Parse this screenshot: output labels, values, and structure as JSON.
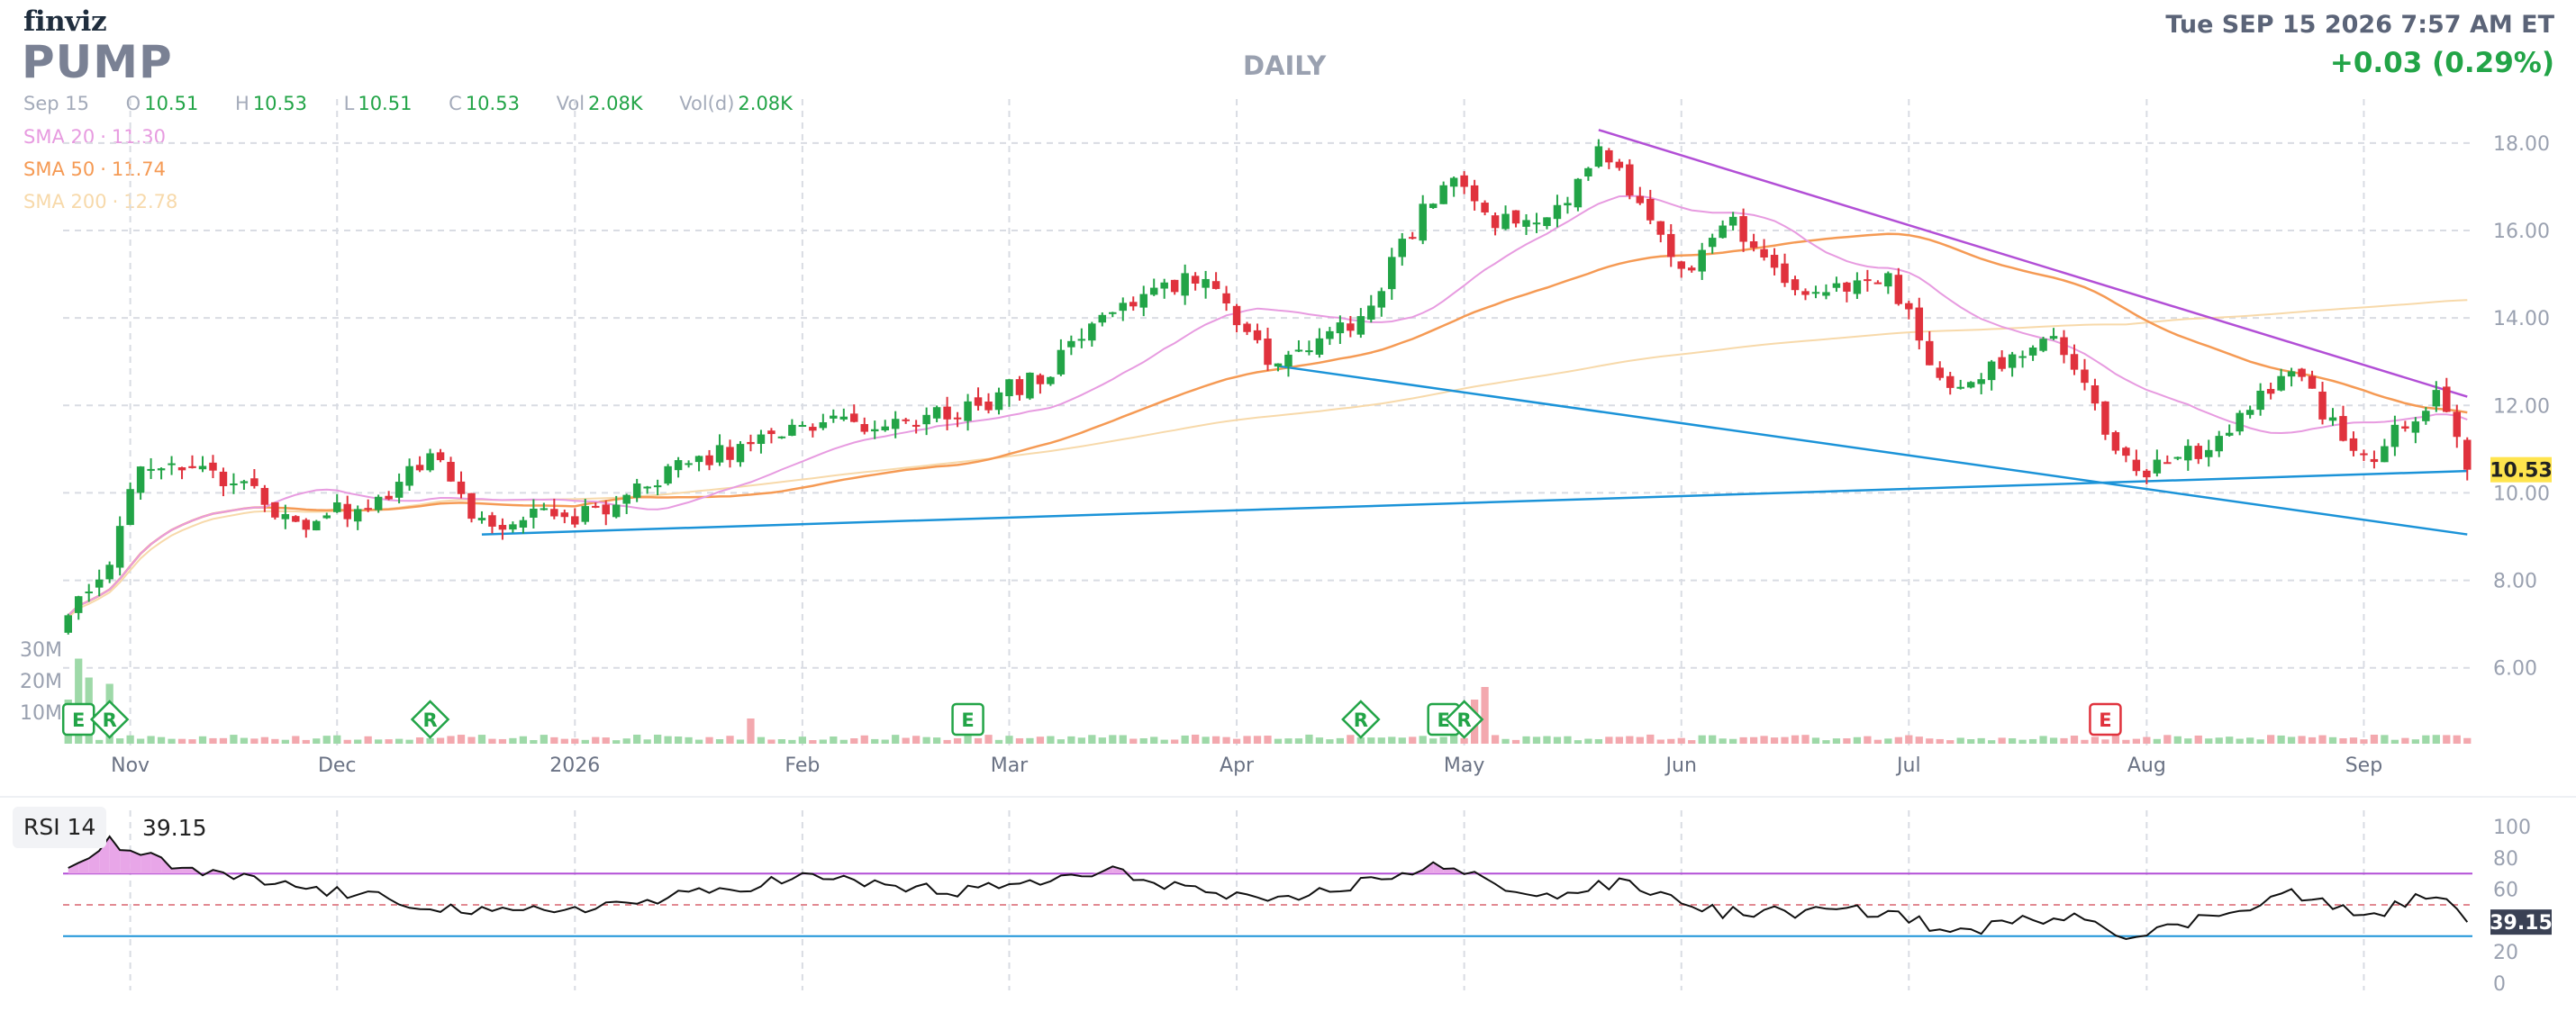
{
  "header": {
    "logo": "finviz",
    "ticker": "PUMP",
    "period": "DAILY",
    "datetime": "Tue SEP 15 2026 7:57 AM ET",
    "change": "+0.03 (0.29%)",
    "change_color": "#22a447"
  },
  "ohlc": {
    "date": "Sep 15",
    "open_label": "O",
    "open": "10.51",
    "high_label": "H",
    "high": "10.53",
    "low_label": "L",
    "low": "10.51",
    "close_label": "C",
    "close": "10.53",
    "vol_label": "Vol",
    "vol": "2.08K",
    "vold_label": "Vol(d)",
    "vold": "2.08K"
  },
  "sma": [
    {
      "label": "SMA 20",
      "value": "11.30",
      "color": "#e79be0"
    },
    {
      "label": "SMA 50",
      "value": "11.74",
      "color": "#f59a54"
    },
    {
      "label": "SMA 200",
      "value": "12.78",
      "color": "#f7d9aa"
    }
  ],
  "colors": {
    "up": "#22a447",
    "down": "#e0323d",
    "vol_up": "#9ed9a8",
    "vol_down": "#f3a8ae",
    "trendline_blue": "#1b93d8",
    "trendline_purple": "#b24fd6",
    "price_tag_bg": "#ffe44d",
    "rsi_line": "#111111",
    "rsi_overbought_fill": "#e8a6e8"
  },
  "chart_data": [
    {
      "type": "candlestick",
      "title": "PUMP DAILY",
      "x_tick_labels": [
        "Nov",
        "Dec",
        "2026",
        "Feb",
        "Mar",
        "Apr",
        "May",
        "Jun",
        "Jul",
        "Aug",
        "Sep"
      ],
      "y_tick_labels": [
        "18.00",
        "16.00",
        "14.00",
        "12.00",
        "10.00",
        "8.00",
        "6.00"
      ],
      "ylim": [
        4.8,
        18.8
      ],
      "y_scale": "linear",
      "grid": true,
      "last_price": "10.53",
      "volume_axis_labels": [
        "30M",
        "20M",
        "10M"
      ],
      "volume_ylim": [
        0,
        35000000
      ],
      "anchors": [
        {
          "date": "2025-10-24",
          "close": 7.2
        },
        {
          "date": "2025-10-30",
          "close": 8.4
        },
        {
          "date": "2025-11-04",
          "close": 10.6
        },
        {
          "date": "2025-11-14",
          "close": 10.4
        },
        {
          "date": "2025-11-25",
          "close": 9.3
        },
        {
          "date": "2025-12-05",
          "close": 9.8
        },
        {
          "date": "2025-12-12",
          "close": 10.9
        },
        {
          "date": "2025-12-19",
          "close": 9.3
        },
        {
          "date": "2026-01-05",
          "close": 9.5
        },
        {
          "date": "2026-01-15",
          "close": 10.5
        },
        {
          "date": "2026-01-26",
          "close": 11.2
        },
        {
          "date": "2026-02-09",
          "close": 11.6
        },
        {
          "date": "2026-02-23",
          "close": 11.8
        },
        {
          "date": "2026-03-06",
          "close": 12.8
        },
        {
          "date": "2026-03-16",
          "close": 14.3
        },
        {
          "date": "2026-03-27",
          "close": 15.0
        },
        {
          "date": "2026-04-06",
          "close": 13.0
        },
        {
          "date": "2026-04-17",
          "close": 14.0
        },
        {
          "date": "2026-04-29",
          "close": 17.2
        },
        {
          "date": "2026-05-06",
          "close": 16.1
        },
        {
          "date": "2026-05-15",
          "close": 16.5
        },
        {
          "date": "2026-05-20",
          "close": 18.1
        },
        {
          "date": "2026-06-01",
          "close": 15.0
        },
        {
          "date": "2026-06-08",
          "close": 16.2
        },
        {
          "date": "2026-06-15",
          "close": 14.6
        },
        {
          "date": "2026-06-29",
          "close": 14.8
        },
        {
          "date": "2026-07-07",
          "close": 12.3
        },
        {
          "date": "2026-07-21",
          "close": 13.6
        },
        {
          "date": "2026-07-28",
          "close": 11.5
        },
        {
          "date": "2026-07-31",
          "close": 10.3
        },
        {
          "date": "2026-08-10",
          "close": 11.0
        },
        {
          "date": "2026-08-21",
          "close": 12.8
        },
        {
          "date": "2026-09-01",
          "close": 10.7
        },
        {
          "date": "2026-09-10",
          "close": 12.2
        },
        {
          "date": "2026-09-15",
          "close": 10.53
        }
      ],
      "volume_spikes": [
        {
          "date": "2025-10-24",
          "volume": 14000000
        },
        {
          "date": "2025-10-27",
          "volume": 27000000
        },
        {
          "date": "2025-10-28",
          "volume": 21000000
        },
        {
          "date": "2025-10-30",
          "volume": 19000000
        },
        {
          "date": "2026-01-26",
          "volume": 8000000
        },
        {
          "date": "2026-05-04",
          "volume": 14000000
        },
        {
          "date": "2026-05-05",
          "volume": 18000000
        }
      ],
      "series": [
        {
          "name": "SMA 20",
          "color": "#e79be0"
        },
        {
          "name": "SMA 50",
          "color": "#f59a54"
        },
        {
          "name": "SMA 200",
          "color": "#f7d9aa"
        }
      ],
      "trendlines": [
        {
          "color": "#b24fd6",
          "from": {
            "date": "2026-05-20",
            "y": 18.3
          },
          "to": {
            "date": "2026-09-15",
            "y": 12.2
          }
        },
        {
          "color": "#1b93d8",
          "from": {
            "date": "2025-12-19",
            "y": 9.05
          },
          "to": {
            "date": "2026-09-15",
            "y": 10.5
          }
        },
        {
          "color": "#1b93d8",
          "from": {
            "date": "2026-04-07",
            "y": 12.9
          },
          "to": {
            "date": "2026-09-15",
            "y": 9.05
          }
        }
      ],
      "event_markers": [
        {
          "type": "E",
          "date": "2025-10-27",
          "shape": "square"
        },
        {
          "type": "R",
          "date": "2025-10-30",
          "shape": "diamond"
        },
        {
          "type": "R",
          "date": "2025-12-12",
          "shape": "diamond"
        },
        {
          "type": "E",
          "date": "2026-02-24",
          "shape": "square"
        },
        {
          "type": "R",
          "date": "2026-04-17",
          "shape": "diamond"
        },
        {
          "type": "E",
          "date": "2026-04-29",
          "shape": "square"
        },
        {
          "type": "R",
          "date": "2026-05-01",
          "shape": "diamond"
        },
        {
          "type": "E",
          "date": "2026-07-28",
          "shape": "square",
          "negative": true
        }
      ]
    },
    {
      "type": "line",
      "title": "RSI 14",
      "current_value": "39.15",
      "y_tick_labels": [
        "100",
        "80",
        "60",
        "40",
        "20",
        "0"
      ],
      "ylim": [
        0,
        100
      ],
      "overbought": 70,
      "oversold": 30,
      "midline": 50,
      "anchors": [
        {
          "date": "2025-10-24",
          "value": 73
        },
        {
          "date": "2025-10-30",
          "value": 90
        },
        {
          "date": "2025-11-10",
          "value": 72
        },
        {
          "date": "2025-12-01",
          "value": 58
        },
        {
          "date": "2025-12-22",
          "value": 44
        },
        {
          "date": "2026-01-12",
          "value": 52
        },
        {
          "date": "2026-02-02",
          "value": 68
        },
        {
          "date": "2026-02-23",
          "value": 58
        },
        {
          "date": "2026-03-16",
          "value": 71
        },
        {
          "date": "2026-04-06",
          "value": 50
        },
        {
          "date": "2026-04-28",
          "value": 75
        },
        {
          "date": "2026-05-13",
          "value": 55
        },
        {
          "date": "2026-05-22",
          "value": 64
        },
        {
          "date": "2026-06-05",
          "value": 45
        },
        {
          "date": "2026-06-29",
          "value": 46
        },
        {
          "date": "2026-07-07",
          "value": 32
        },
        {
          "date": "2026-07-23",
          "value": 45
        },
        {
          "date": "2026-07-31",
          "value": 29
        },
        {
          "date": "2026-08-21",
          "value": 58
        },
        {
          "date": "2026-09-01",
          "value": 42
        },
        {
          "date": "2026-09-10",
          "value": 58
        },
        {
          "date": "2026-09-15",
          "value": 39
        }
      ]
    }
  ]
}
